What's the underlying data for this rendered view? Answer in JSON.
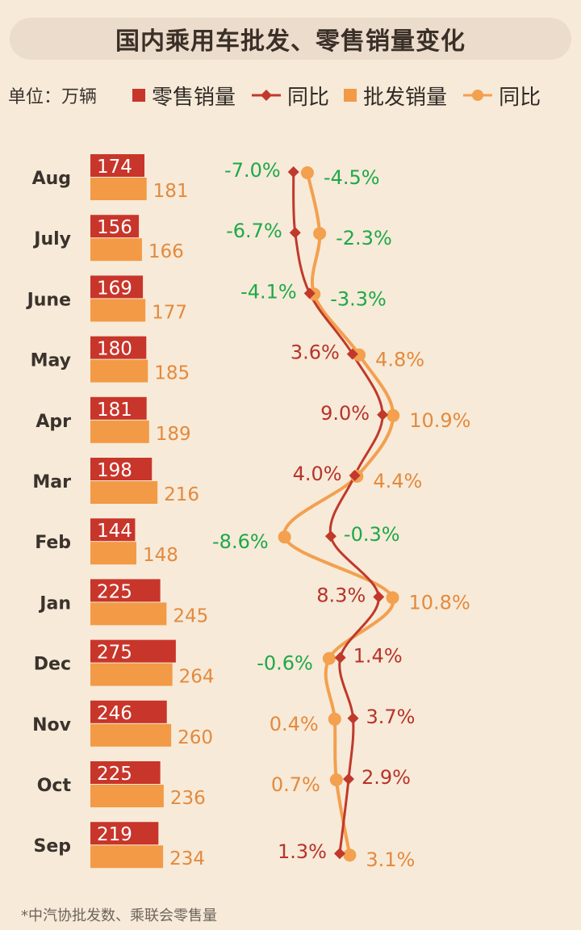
{
  "title": "国内乘用车批发、零售销量变化",
  "unit_label": "单位：万辆",
  "legend": [
    {
      "label": "零售销量",
      "kind": "bar",
      "color": "#c8352a"
    },
    {
      "label": "同比",
      "kind": "line-diamond",
      "color": "#c0392b"
    },
    {
      "label": "批发销量",
      "kind": "bar",
      "color": "#f29a46"
    },
    {
      "label": "同比",
      "kind": "line-circle",
      "color": "#f3a04f"
    }
  ],
  "footnote": "*中汽协批发数、乘联会零售量",
  "colors": {
    "retail": "#c8352a",
    "wholesale": "#f29a46",
    "retail_yoy_line": "#c0392b",
    "wholesale_yoy_line": "#f3a04f",
    "negative": "#1ea84a",
    "retail_label": "#b7332a",
    "wholesale_label": "#e38a3e"
  },
  "chart_data": {
    "type": "bar",
    "orientation": "horizontal",
    "categories": [
      "Aug",
      "July",
      "June",
      "May",
      "Apr",
      "Mar",
      "Feb",
      "Jan",
      "Dec",
      "Nov",
      "Oct",
      "Sep"
    ],
    "series": [
      {
        "name": "零售销量",
        "values": [
          174,
          156,
          169,
          180,
          181,
          198,
          144,
          225,
          275,
          246,
          225,
          219
        ]
      },
      {
        "name": "批发销量",
        "values": [
          181,
          166,
          177,
          185,
          189,
          216,
          148,
          245,
          264,
          260,
          236,
          234
        ]
      }
    ],
    "yoy_series": [
      {
        "name": "同比",
        "marker": "diamond",
        "values": [
          -7.0,
          -6.7,
          -4.1,
          3.6,
          9.0,
          4.0,
          -0.3,
          8.3,
          1.4,
          3.7,
          2.9,
          1.3
        ],
        "labels": [
          "-7.0%",
          "-6.7%",
          "-4.1%",
          "3.6%",
          "9.0%",
          "4.0%",
          "-0.3%",
          "8.3%",
          "1.4%",
          "3.7%",
          "2.9%",
          "1.3%"
        ]
      },
      {
        "name": "同比",
        "marker": "circle",
        "values": [
          -4.5,
          -2.3,
          -3.3,
          4.8,
          10.9,
          4.4,
          -8.6,
          10.8,
          -0.6,
          0.4,
          0.7,
          3.1
        ],
        "labels": [
          "-4.5%",
          "-2.3%",
          "-3.3%",
          "4.8%",
          "10.9%",
          "4.4%",
          "-8.6%",
          "10.8%",
          "-0.6%",
          "0.4%",
          "0.7%",
          "3.1%"
        ]
      }
    ]
  }
}
